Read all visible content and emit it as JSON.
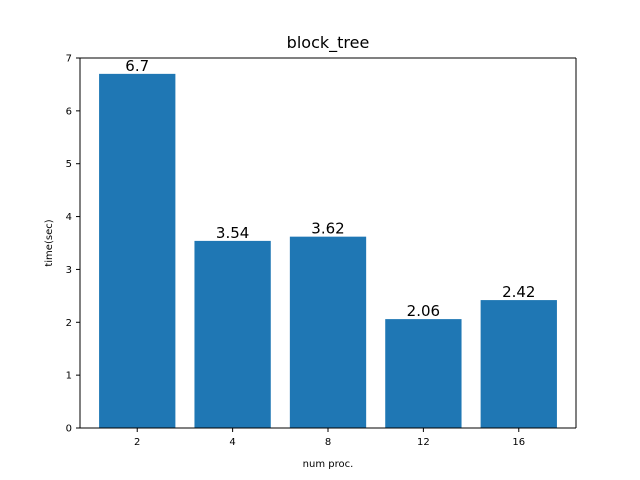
{
  "chart_data": {
    "type": "bar",
    "title": "block_tree",
    "xlabel": "num proc.",
    "ylabel": "time(sec)",
    "categories": [
      "2",
      "4",
      "8",
      "12",
      "16"
    ],
    "values": [
      6.7,
      3.54,
      3.62,
      2.06,
      2.42
    ],
    "data_labels": [
      "6.7",
      "3.54",
      "3.62",
      "2.06",
      "2.42"
    ],
    "ylim": [
      0,
      7
    ],
    "yticks": [
      0,
      1,
      2,
      3,
      4,
      5,
      6,
      7
    ],
    "ytick_labels": [
      "0",
      "1",
      "2",
      "3",
      "4",
      "5",
      "6",
      "7"
    ],
    "bar_color": "#1f77b4",
    "grid": false,
    "legend": "none"
  }
}
